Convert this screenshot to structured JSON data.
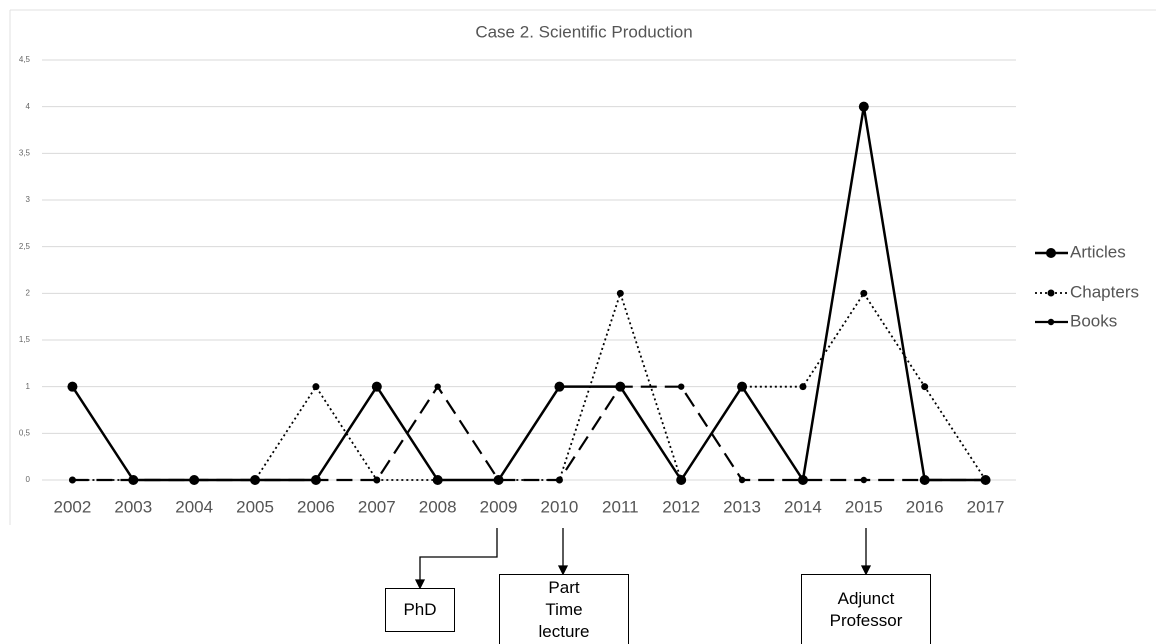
{
  "chart_data": {
    "type": "line",
    "title": "Case 2. Scientific Production",
    "categories": [
      "2002",
      "2003",
      "2004",
      "2005",
      "2006",
      "2007",
      "2008",
      "2009",
      "2010",
      "2011",
      "2012",
      "2013",
      "2014",
      "2015",
      "2016",
      "2017"
    ],
    "series": [
      {
        "name": "Articles",
        "color": "#000000",
        "line_style": "solid",
        "values": [
          1,
          0,
          0,
          0,
          0,
          1,
          0,
          0,
          1,
          1,
          0,
          1,
          0,
          4,
          0,
          0
        ]
      },
      {
        "name": "Chapters",
        "color": "#000000",
        "line_style": "dotted",
        "values": [
          0,
          0,
          0,
          0,
          1,
          0,
          0,
          0,
          0,
          2,
          0,
          1,
          1,
          2,
          1,
          0
        ]
      },
      {
        "name": "Books",
        "color": "#000000",
        "line_style": "dashed",
        "values": [
          0,
          0,
          0,
          0,
          0,
          0,
          1,
          0,
          0,
          1,
          1,
          0,
          0,
          0,
          0,
          0
        ]
      }
    ],
    "ylim": [
      0,
      4.5
    ],
    "yticks": [
      0,
      {
        "value": 0.5,
        "label": "0,5"
      },
      1,
      {
        "value": 1.5,
        "label": "1,5"
      },
      2,
      {
        "value": 2.5,
        "label": "2,5"
      },
      3,
      {
        "value": 3.5,
        "label": "3,5"
      },
      4,
      {
        "value": 4.5,
        "label": "4,5"
      }
    ],
    "grid": true,
    "legend": "right",
    "annotations": [
      "PhD",
      "Part Time lecture",
      "Adjunct Professor"
    ]
  }
}
